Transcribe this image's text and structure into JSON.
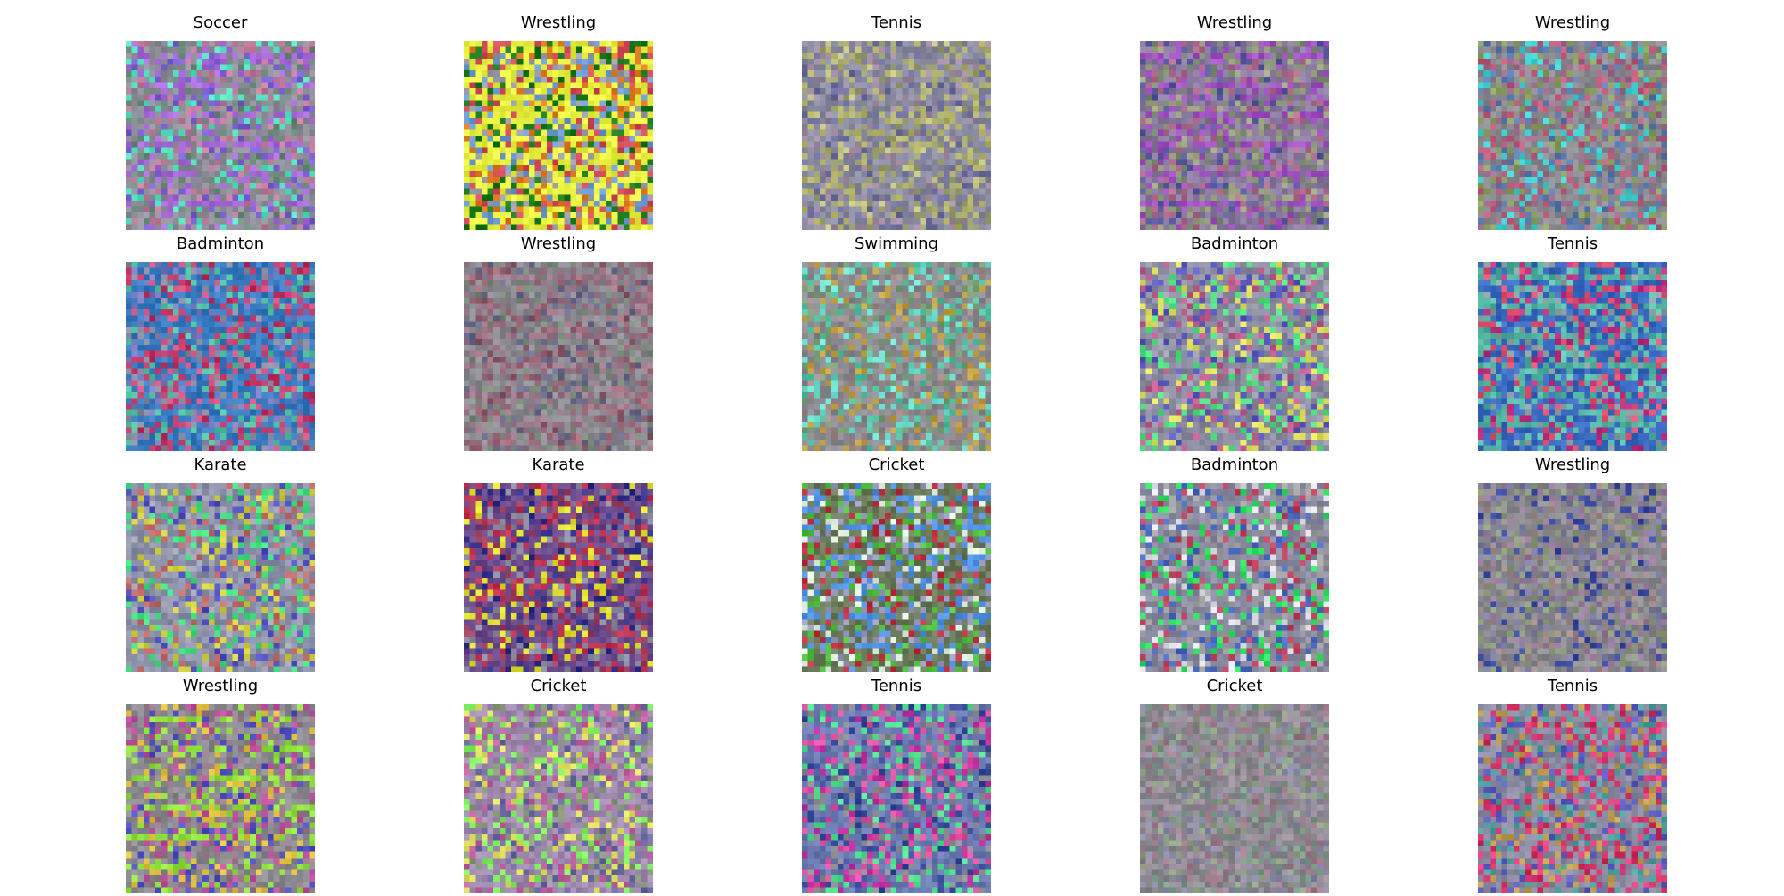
{
  "grid": {
    "rows": 4,
    "cols": 5,
    "items": [
      {
        "label": "Soccer",
        "palette": [
          "#8f8f9a",
          "#a86ad8",
          "#55e0c0",
          "#7a5fd0",
          "#c07a9a",
          "#6a8a7a"
        ]
      },
      {
        "label": "Wrestling",
        "palette": [
          "#e8f040",
          "#1a7a1a",
          "#9a9aa8",
          "#d04a5a",
          "#6a9ad0",
          "#e07a20"
        ]
      },
      {
        "label": "Tennis",
        "palette": [
          "#8a8aa0",
          "#9aa070",
          "#b0b060",
          "#7070a0",
          "#a08aa0",
          "#c0c080"
        ]
      },
      {
        "label": "Wrestling",
        "palette": [
          "#8a7aa0",
          "#a050c0",
          "#7a8a70",
          "#b06a8a",
          "#5a5aa0",
          "#9aa080"
        ]
      },
      {
        "label": "Wrestling",
        "palette": [
          "#8a8a90",
          "#a06a8a",
          "#5a7ab0",
          "#8aa060",
          "#c05a7a",
          "#40d0d0"
        ]
      },
      {
        "label": "Badminton",
        "palette": [
          "#3a7ac0",
          "#d05080",
          "#8a8aa0",
          "#50c0a0",
          "#c03060",
          "#7a7ac0"
        ]
      },
      {
        "label": "Wrestling",
        "palette": [
          "#8a8a90",
          "#9a7a8a",
          "#7a8a7a",
          "#a06a7a",
          "#6a6a8a",
          "#8a5a6a"
        ]
      },
      {
        "label": "Swimming",
        "palette": [
          "#8a8a90",
          "#7aa07a",
          "#a08a8a",
          "#50c0a0",
          "#c0a040",
          "#70e0d0"
        ]
      },
      {
        "label": "Badminton",
        "palette": [
          "#8a8aa0",
          "#50e080",
          "#a0a0b0",
          "#e0e060",
          "#5a5ac0",
          "#c05a8a"
        ]
      },
      {
        "label": "Tennis",
        "palette": [
          "#3a6ac0",
          "#50b0a0",
          "#8aa0a0",
          "#c03080",
          "#e05070",
          "#60c0b0"
        ]
      },
      {
        "label": "Karate",
        "palette": [
          "#8a90a8",
          "#5050c0",
          "#40e080",
          "#d0d040",
          "#c06a6a",
          "#a0a0b0"
        ]
      },
      {
        "label": "Karate",
        "palette": [
          "#6a4a8a",
          "#c03050",
          "#30308a",
          "#8a8aa0",
          "#e0e030",
          "#a04060"
        ]
      },
      {
        "label": "Cricket",
        "palette": [
          "#6a7a5a",
          "#5090e0",
          "#e0f0e0",
          "#c03040",
          "#9a9ac0",
          "#50c040"
        ]
      },
      {
        "label": "Badminton",
        "palette": [
          "#8a8aa0",
          "#30e060",
          "#c04060",
          "#4a6ac0",
          "#a0a0a0",
          "#e0e0e8"
        ]
      },
      {
        "label": "Wrestling",
        "palette": [
          "#8a8a90",
          "#7a7aa0",
          "#a08a8a",
          "#3a4aa0",
          "#8a9a7a",
          "#9a7a9a"
        ]
      },
      {
        "label": "Wrestling",
        "palette": [
          "#8a8a90",
          "#90e040",
          "#c050a0",
          "#5050c0",
          "#e0c040",
          "#9a7a8a"
        ]
      },
      {
        "label": "Cricket",
        "palette": [
          "#a08ab0",
          "#80f060",
          "#8a9a7a",
          "#c060a0",
          "#e0e060",
          "#6a6aa0"
        ]
      },
      {
        "label": "Tennis",
        "palette": [
          "#6a7ab0",
          "#c030a0",
          "#50e090",
          "#8a8a90",
          "#3a4a9a",
          "#e050a0"
        ]
      },
      {
        "label": "Cricket",
        "palette": [
          "#8a8a90",
          "#9a8a9a",
          "#7a9a8a",
          "#a07a8a",
          "#8a8aa8",
          "#90a080"
        ]
      },
      {
        "label": "Tennis",
        "palette": [
          "#8a8aa0",
          "#d03060",
          "#50a0a0",
          "#5a5ac0",
          "#c0a050",
          "#e04080"
        ]
      }
    ]
  }
}
